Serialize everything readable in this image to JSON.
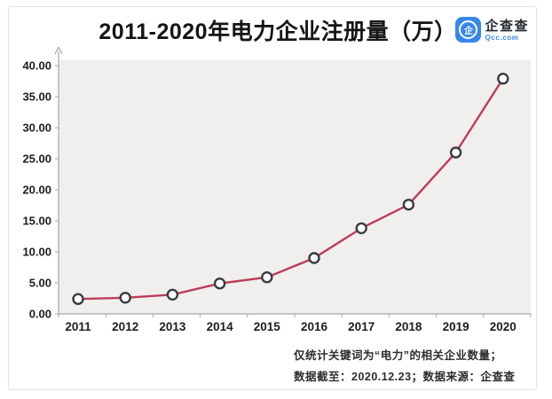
{
  "header": {
    "title": "2011-2020年电力企业注册量（万）",
    "logo": {
      "icon_text": "企",
      "brand": "企查查",
      "domain": "Qcc.com",
      "brand_blue": "#3688e8"
    }
  },
  "chart_data": {
    "type": "line",
    "title": "2011-2020年电力企业注册量（万）",
    "categories": [
      "2011",
      "2012",
      "2013",
      "2014",
      "2015",
      "2016",
      "2017",
      "2018",
      "2019",
      "2020"
    ],
    "series": [
      {
        "name": "电力企业注册量（万）",
        "values": [
          2.4,
          2.6,
          3.1,
          4.9,
          5.9,
          9.0,
          13.8,
          17.6,
          26.0,
          37.9
        ]
      }
    ],
    "xlabel": "",
    "ylabel": "",
    "ylim": [
      0,
      40
    ],
    "ytick_step": 5,
    "ytick_labels": [
      "0.00",
      "5.00",
      "10.00",
      "15.00",
      "20.00",
      "25.00",
      "30.00",
      "35.00",
      "40.00"
    ],
    "grid": false,
    "legend_position": "none",
    "colors": {
      "line": "#be3c5a",
      "marker_fill": "#ffffff",
      "marker_stroke": "#383d44",
      "plot_bg": "#f0efee",
      "axis": "#a6a6a6",
      "tick_text": "#1d1d1d"
    }
  },
  "footnote": {
    "line1": "仅统计关键词为“电力”的相关企业数量；",
    "line2": "数据截至：2020.12.23；数据来源：企查查"
  }
}
